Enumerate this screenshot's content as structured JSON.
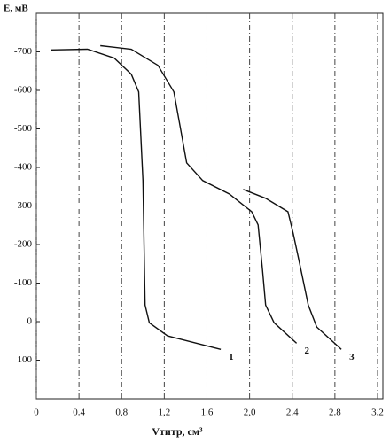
{
  "chart_data": {
    "type": "line",
    "y_label": "E, мВ",
    "x_label": "Vтитр, см³",
    "xlim": [
      0,
      3.25
    ],
    "xticks": [
      0,
      0.4,
      {
        "value": 0.8,
        "label": "0,8"
      },
      {
        "value": 1.2,
        "label": "1,2"
      },
      1.6,
      {
        "value": 2.0,
        "label": "2,0"
      },
      2.4,
      2.8,
      3.2
    ],
    "ylim": [
      -800,
      200
    ],
    "y_inverted": true,
    "yticks": [
      -700,
      -600,
      -500,
      -400,
      -300,
      -200,
      -100,
      0,
      100
    ],
    "grid": true,
    "series": [
      {
        "name": "1",
        "color": "#111111",
        "x": [
          0.14,
          0.48,
          0.73,
          0.89,
          0.96,
          1.0,
          1.02,
          1.06,
          1.23,
          1.73
        ],
        "values": [
          -705,
          -707,
          -684,
          -642,
          -596,
          -366,
          -43,
          3,
          37,
          72
        ]
      },
      {
        "name": "2",
        "color": "#111111",
        "x": [
          0.6,
          0.89,
          1.14,
          1.29,
          1.35,
          1.41,
          1.56,
          1.81,
          2.02,
          2.08,
          2.12,
          2.15,
          2.23,
          2.44
        ],
        "values": [
          -716,
          -707,
          -665,
          -596,
          -504,
          -412,
          -366,
          -331,
          -285,
          -251,
          -136,
          -43,
          3,
          56
        ]
      },
      {
        "name": "3",
        "color": "#111111",
        "x": [
          1.94,
          2.15,
          2.36,
          2.41,
          2.48,
          2.55,
          2.63,
          2.86
        ],
        "values": [
          -343,
          -320,
          -285,
          -228,
          -136,
          -43,
          14,
          72
        ]
      }
    ]
  }
}
